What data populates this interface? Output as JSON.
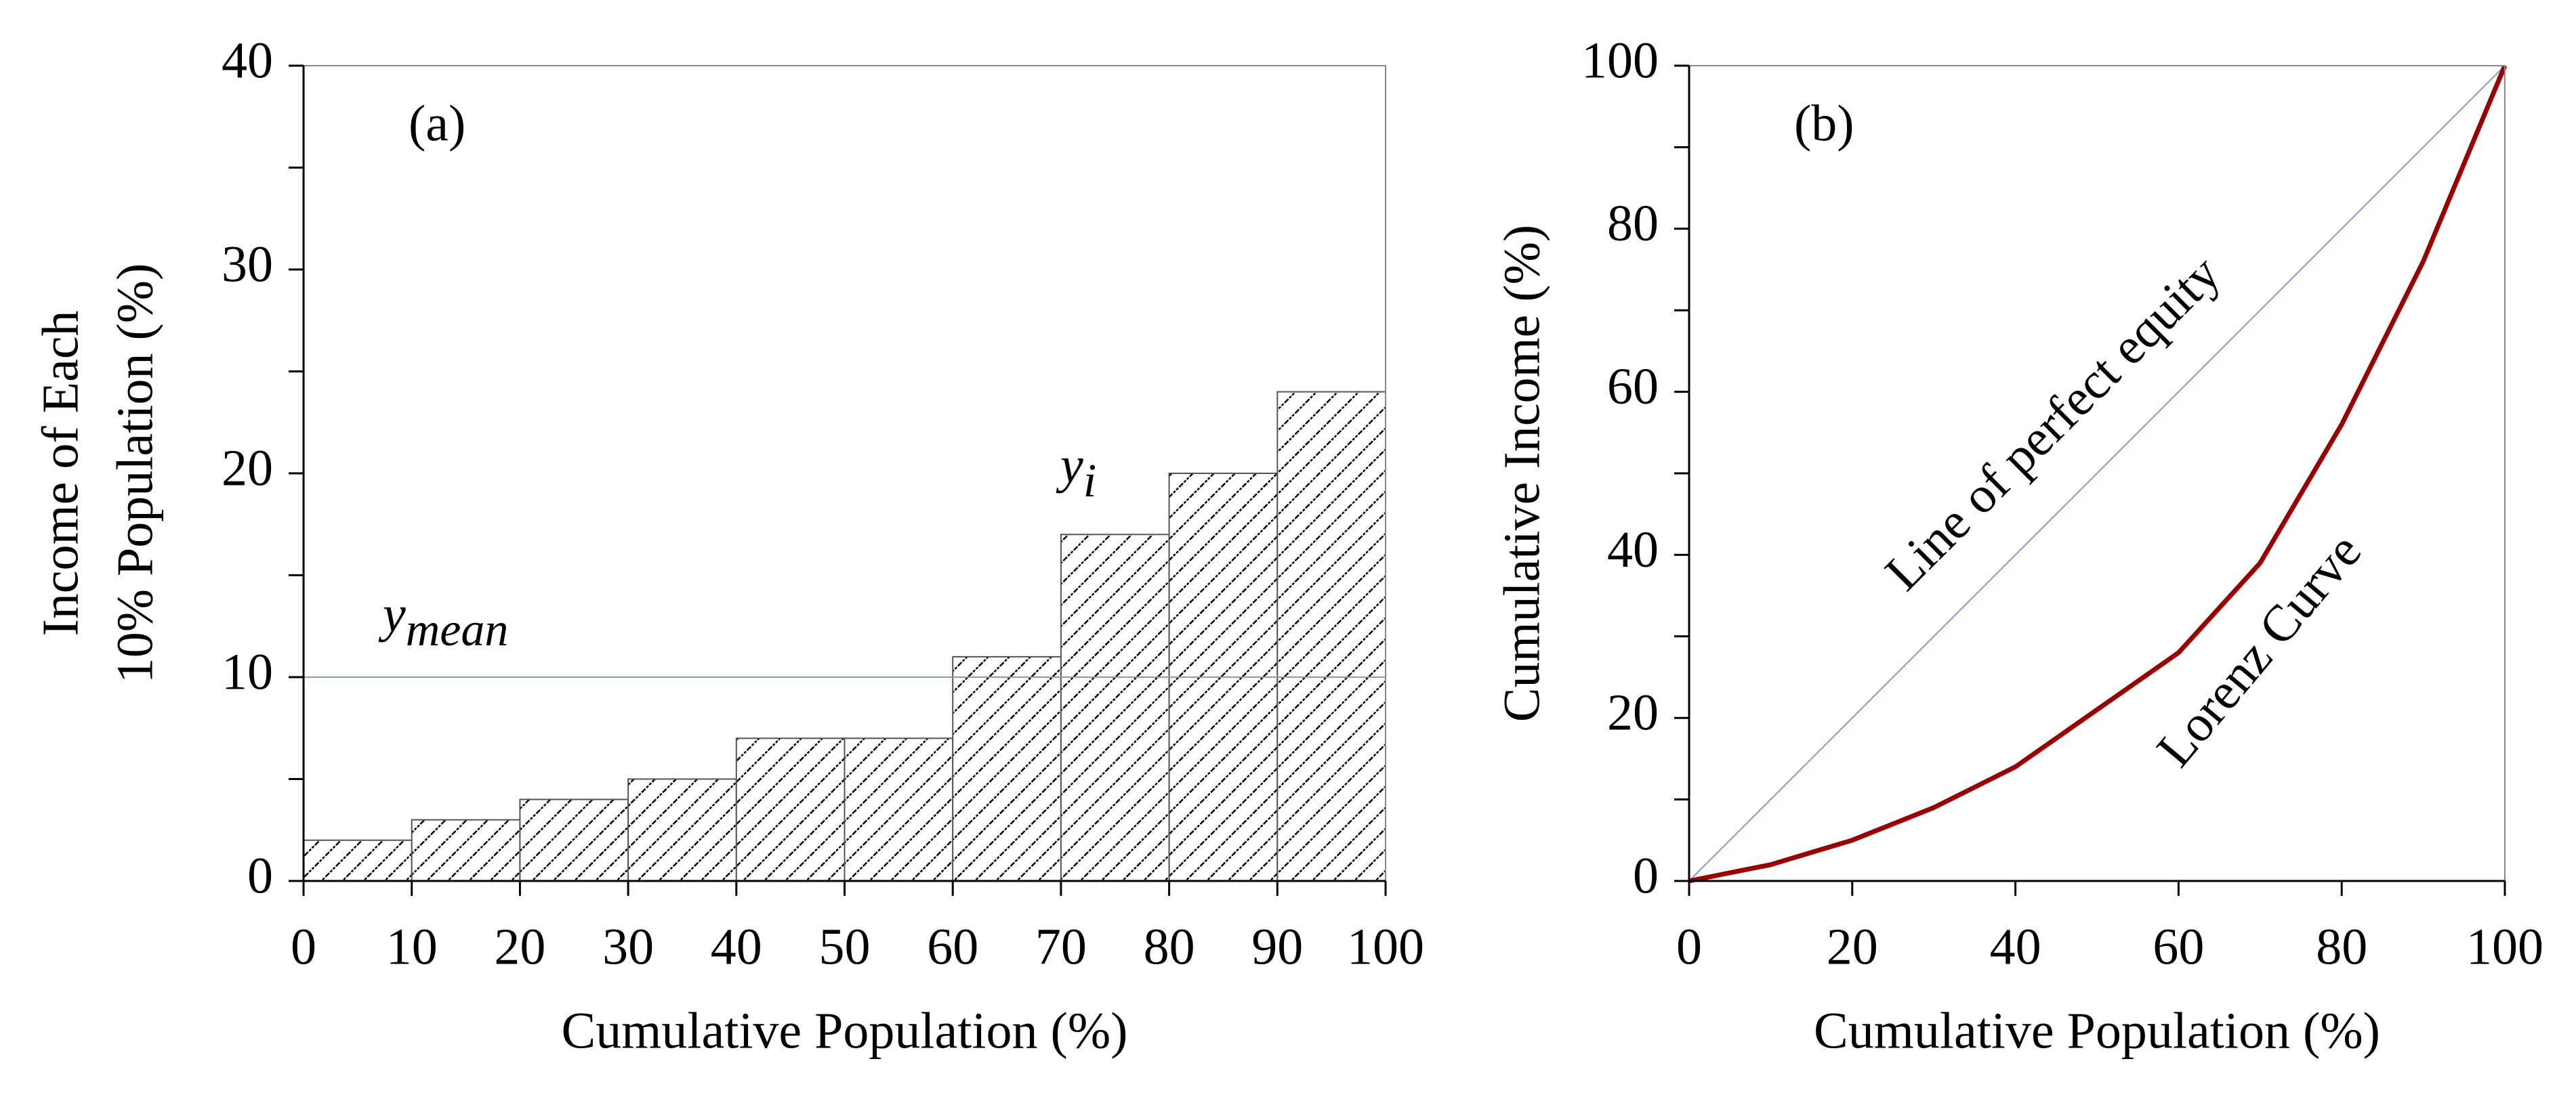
{
  "chart_data": [
    {
      "type": "histogram",
      "label": "(a)",
      "bins": [
        0,
        10,
        20,
        30,
        40,
        50,
        60,
        70,
        80,
        90,
        100
      ],
      "values": [
        2,
        3,
        4,
        5,
        7,
        7,
        11,
        17,
        20,
        24
      ],
      "xlim": [
        0,
        100
      ],
      "xticks": [
        0,
        10,
        20,
        30,
        40,
        50,
        60,
        70,
        80,
        90,
        100
      ],
      "ylim": [
        0,
        40
      ],
      "yticks": [
        0,
        10,
        20,
        30,
        40
      ],
      "yminor": [
        5,
        15,
        25,
        35
      ],
      "x_label": "Cumulative Population (%)",
      "y_label": [
        "Income of Each",
        "10% Population (%)"
      ],
      "mean_line": {
        "value": 10,
        "color": "#8c96d2",
        "label": {
          "base": "y",
          "sub": "mean"
        }
      },
      "bar_label": {
        "base": "y",
        "sub": "i"
      }
    },
    {
      "type": "line",
      "label": "(b)",
      "series": [
        {
          "name": "Line of perfect equity",
          "color": "#8c96d2",
          "x": [
            0,
            100
          ],
          "values": [
            0,
            100
          ]
        },
        {
          "name": "Lorenz Curve",
          "color": "#990000",
          "x": [
            0,
            10,
            20,
            30,
            40,
            50,
            60,
            70,
            80,
            90,
            100
          ],
          "values": [
            0,
            2,
            5,
            9,
            14,
            21,
            28,
            39,
            56,
            76,
            100
          ]
        }
      ],
      "xlim": [
        0,
        100
      ],
      "xticks": [
        0,
        20,
        40,
        60,
        80,
        100
      ],
      "ylim": [
        0,
        100
      ],
      "yticks": [
        0,
        20,
        40,
        60,
        80,
        100
      ],
      "yminor": [
        10,
        30,
        50,
        70,
        90
      ],
      "x_label": "Cumulative Population (%)",
      "y_label": "Cumulative Income (%)"
    }
  ]
}
